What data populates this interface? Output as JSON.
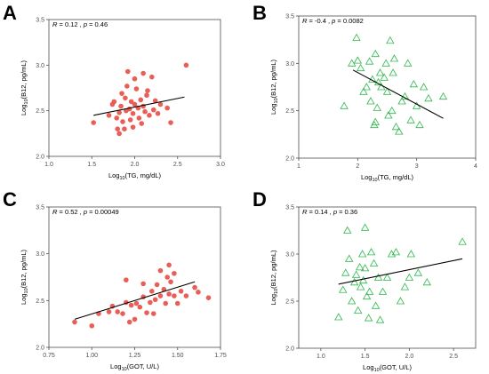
{
  "chart_data": [
    {
      "type": "scatter",
      "panel": "A",
      "stat_label": "R = 0.12 , p = 0.46",
      "xlabel": "Log10(TG, mg/dL)",
      "ylabel": "Log10(B12, pg/mL)",
      "xlim": [
        1.0,
        3.0
      ],
      "ylim": [
        2.0,
        3.5
      ],
      "xticks": [
        "1.0",
        "1.5",
        "2.0",
        "2.5",
        "3.0"
      ],
      "yticks": [
        "2.0",
        "2.5",
        "3.0",
        "3.5"
      ],
      "marker": "circle",
      "color": "#e8564f",
      "points": [
        [
          1.52,
          2.37
        ],
        [
          1.7,
          2.45
        ],
        [
          1.74,
          2.57
        ],
        [
          1.76,
          2.6
        ],
        [
          1.79,
          2.42
        ],
        [
          1.8,
          2.3
        ],
        [
          1.82,
          2.25
        ],
        [
          1.82,
          2.48
        ],
        [
          1.84,
          2.55
        ],
        [
          1.85,
          2.69
        ],
        [
          1.86,
          2.38
        ],
        [
          1.88,
          2.3
        ],
        [
          1.89,
          2.64
        ],
        [
          1.9,
          2.5
        ],
        [
          1.91,
          2.77
        ],
        [
          1.92,
          2.93
        ],
        [
          1.94,
          2.52
        ],
        [
          1.95,
          2.4
        ],
        [
          1.96,
          2.6
        ],
        [
          1.98,
          2.32
        ],
        [
          1.98,
          2.47
        ],
        [
          2.0,
          2.57
        ],
        [
          2.0,
          2.85
        ],
        [
          2.02,
          2.74
        ],
        [
          2.04,
          2.53
        ],
        [
          2.05,
          2.42
        ],
        [
          2.07,
          2.62
        ],
        [
          2.08,
          2.36
        ],
        [
          2.1,
          2.55
        ],
        [
          2.1,
          2.91
        ],
        [
          2.12,
          2.49
        ],
        [
          2.14,
          2.67
        ],
        [
          2.15,
          2.72
        ],
        [
          2.17,
          2.45
        ],
        [
          2.2,
          2.87
        ],
        [
          2.22,
          2.51
        ],
        [
          2.24,
          2.61
        ],
        [
          2.27,
          2.47
        ],
        [
          2.3,
          2.57
        ],
        [
          2.38,
          2.53
        ],
        [
          2.42,
          2.37
        ],
        [
          2.6,
          3.0
        ]
      ],
      "fit": [
        [
          1.52,
          2.45
        ],
        [
          2.58,
          2.65
        ]
      ]
    },
    {
      "type": "scatter",
      "panel": "B",
      "stat_label": "R = -0.4 , p = 0.0082",
      "xlabel": "Log10(TG, mg/dL)",
      "ylabel": "Log10(B12, pg/mL)",
      "xlim": [
        1,
        4
      ],
      "ylim": [
        2.0,
        3.5
      ],
      "xticks": [
        "1",
        "2",
        "3",
        "4"
      ],
      "yticks": [
        "2.0",
        "2.5",
        "3.0",
        "3.5"
      ],
      "marker": "triangle",
      "color": "#2db84c",
      "points": [
        [
          1.77,
          2.55
        ],
        [
          1.9,
          3.0
        ],
        [
          1.98,
          3.27
        ],
        [
          2.0,
          3.03
        ],
        [
          2.05,
          2.95
        ],
        [
          2.1,
          2.7
        ],
        [
          2.15,
          2.75
        ],
        [
          2.2,
          3.02
        ],
        [
          2.22,
          2.6
        ],
        [
          2.25,
          2.83
        ],
        [
          2.28,
          2.35
        ],
        [
          2.3,
          2.38
        ],
        [
          2.3,
          3.1
        ],
        [
          2.33,
          2.53
        ],
        [
          2.35,
          2.8
        ],
        [
          2.38,
          2.9
        ],
        [
          2.4,
          2.75
        ],
        [
          2.45,
          2.85
        ],
        [
          2.48,
          3.0
        ],
        [
          2.5,
          2.7
        ],
        [
          2.52,
          2.45
        ],
        [
          2.55,
          3.24
        ],
        [
          2.58,
          2.5
        ],
        [
          2.6,
          2.9
        ],
        [
          2.62,
          3.05
        ],
        [
          2.65,
          2.33
        ],
        [
          2.7,
          2.28
        ],
        [
          2.75,
          2.6
        ],
        [
          2.8,
          2.65
        ],
        [
          2.85,
          3.0
        ],
        [
          2.9,
          2.4
        ],
        [
          2.95,
          2.78
        ],
        [
          3.0,
          2.55
        ],
        [
          3.05,
          2.35
        ],
        [
          3.12,
          2.75
        ],
        [
          3.2,
          2.63
        ],
        [
          3.45,
          2.65
        ]
      ],
      "fit": [
        [
          1.92,
          2.93
        ],
        [
          3.45,
          2.42
        ]
      ]
    },
    {
      "type": "scatter",
      "panel": "C",
      "stat_label": "R = 0.52 , p = 0.00049",
      "xlabel": "Log10(GOT, U/L)",
      "ylabel": "Log10(B12, pg/mL)",
      "xlim": [
        0.75,
        1.75
      ],
      "ylim": [
        2.0,
        3.5
      ],
      "xticks": [
        "0.75",
        "1.00",
        "1.25",
        "1.50",
        "1.75"
      ],
      "yticks": [
        "2.0",
        "2.5",
        "3.0",
        "3.5"
      ],
      "marker": "circle",
      "color": "#e8564f",
      "points": [
        [
          0.9,
          2.27
        ],
        [
          1.0,
          2.23
        ],
        [
          1.04,
          2.36
        ],
        [
          1.1,
          2.38
        ],
        [
          1.12,
          2.44
        ],
        [
          1.15,
          2.38
        ],
        [
          1.18,
          2.36
        ],
        [
          1.2,
          2.48
        ],
        [
          1.2,
          2.72
        ],
        [
          1.22,
          2.27
        ],
        [
          1.23,
          2.45
        ],
        [
          1.25,
          2.3
        ],
        [
          1.26,
          2.47
        ],
        [
          1.28,
          2.43
        ],
        [
          1.3,
          2.54
        ],
        [
          1.3,
          2.68
        ],
        [
          1.32,
          2.37
        ],
        [
          1.34,
          2.48
        ],
        [
          1.35,
          2.6
        ],
        [
          1.36,
          2.36
        ],
        [
          1.37,
          2.51
        ],
        [
          1.38,
          2.67
        ],
        [
          1.4,
          2.82
        ],
        [
          1.4,
          2.55
        ],
        [
          1.42,
          2.62
        ],
        [
          1.43,
          2.47
        ],
        [
          1.44,
          2.75
        ],
        [
          1.45,
          2.88
        ],
        [
          1.45,
          2.57
        ],
        [
          1.46,
          2.7
        ],
        [
          1.48,
          2.79
        ],
        [
          1.48,
          2.55
        ],
        [
          1.5,
          2.47
        ],
        [
          1.52,
          2.6
        ],
        [
          1.55,
          2.55
        ],
        [
          1.6,
          2.64
        ],
        [
          1.62,
          2.59
        ],
        [
          1.68,
          2.53
        ]
      ],
      "fit": [
        [
          0.9,
          2.3
        ],
        [
          1.6,
          2.7
        ]
      ]
    },
    {
      "type": "scatter",
      "panel": "D",
      "stat_label": "R = 0.14 , p = 0.36",
      "xlabel": "Log10(GOT, U/L)",
      "ylabel": "Log10(B12, pg/mL)",
      "xlim": [
        0.75,
        2.75
      ],
      "ylim": [
        2.0,
        3.5
      ],
      "xticks": [
        "1.0",
        "1.5",
        "2.0",
        "2.5"
      ],
      "yticks": [
        "2.0",
        "2.5",
        "3.0",
        "3.5"
      ],
      "marker": "triangle",
      "color": "#2db84c",
      "points": [
        [
          1.2,
          2.33
        ],
        [
          1.25,
          2.62
        ],
        [
          1.28,
          2.8
        ],
        [
          1.3,
          3.25
        ],
        [
          1.32,
          2.95
        ],
        [
          1.35,
          2.5
        ],
        [
          1.38,
          2.7
        ],
        [
          1.4,
          2.78
        ],
        [
          1.42,
          2.4
        ],
        [
          1.44,
          2.86
        ],
        [
          1.45,
          2.65
        ],
        [
          1.47,
          3.0
        ],
        [
          1.48,
          2.72
        ],
        [
          1.5,
          2.85
        ],
        [
          1.5,
          3.28
        ],
        [
          1.52,
          2.55
        ],
        [
          1.54,
          2.32
        ],
        [
          1.55,
          2.6
        ],
        [
          1.57,
          3.02
        ],
        [
          1.6,
          2.9
        ],
        [
          1.62,
          2.45
        ],
        [
          1.65,
          2.75
        ],
        [
          1.67,
          2.3
        ],
        [
          1.7,
          2.6
        ],
        [
          1.75,
          2.75
        ],
        [
          1.8,
          3.0
        ],
        [
          1.85,
          3.02
        ],
        [
          1.9,
          2.5
        ],
        [
          1.95,
          2.65
        ],
        [
          2.0,
          2.75
        ],
        [
          2.02,
          3.0
        ],
        [
          2.1,
          2.8
        ],
        [
          2.2,
          2.7
        ],
        [
          2.6,
          3.13
        ]
      ],
      "fit": [
        [
          1.2,
          2.68
        ],
        [
          2.6,
          2.95
        ]
      ]
    }
  ]
}
